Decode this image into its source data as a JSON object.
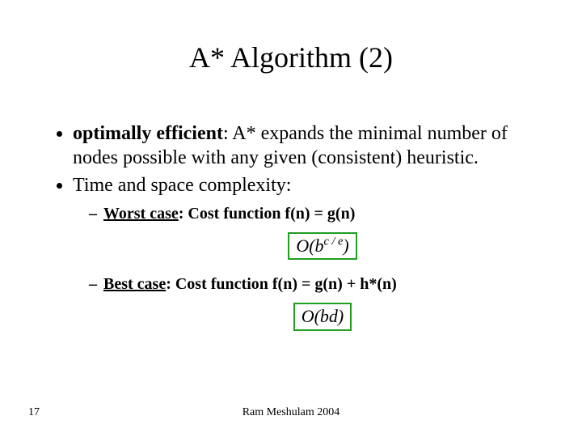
{
  "title": "A* Algorithm (2)",
  "bullets": {
    "b1_bold": "optimally efficient",
    "b1_rest": ": A* expands the minimal number of nodes possible with any given (consistent) heuristic.",
    "b2": "Time and space complexity:"
  },
  "sub": {
    "worst_label": "Worst case",
    "worst_rest": ": Cost function f(n) = g(n)",
    "best_label": "Best case",
    "best_rest": ": Cost function f(n) = g(n) + h*(n)"
  },
  "formulas": {
    "worst_main": "O(b",
    "worst_sup": "c / e",
    "worst_close": ")",
    "worst_border_color": "#1f9e1f",
    "best_text": "O(bd)",
    "best_border_color": "#1f9e1f"
  },
  "footer": {
    "page": "17",
    "author": "Ram Meshulam 2004"
  },
  "style": {
    "background": "#ffffff",
    "text_color": "#000000",
    "title_fontsize": 36,
    "body_fontsize": 24,
    "sub_fontsize": 20,
    "footer_fontsize": 14,
    "font_family": "Times New Roman"
  }
}
